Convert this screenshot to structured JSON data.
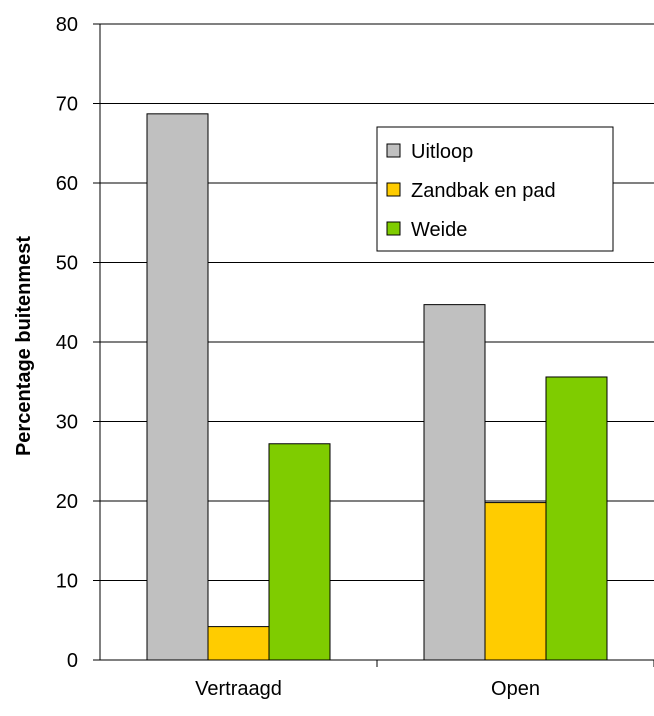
{
  "chart_data": {
    "type": "bar",
    "title": "",
    "xlabel": "",
    "ylabel": "Percentage buitenmest",
    "ylim": [
      0,
      80
    ],
    "ytick_step": 10,
    "yticks": [
      "0",
      "10",
      "20",
      "30",
      "40",
      "50",
      "60",
      "70",
      "80"
    ],
    "grid": true,
    "legend_position": "top-right",
    "categories": [
      "Vertraagd",
      "Open"
    ],
    "series": [
      {
        "name": "Uitloop",
        "color": "#C0C0C0",
        "values": [
          68.7,
          44.7
        ]
      },
      {
        "name": "Zandbak en pad",
        "color": "#FFCC00",
        "values": [
          4.2,
          19.8
        ]
      },
      {
        "name": "Weide",
        "color": "#7FCC00",
        "values": [
          27.2,
          35.6
        ]
      }
    ]
  }
}
